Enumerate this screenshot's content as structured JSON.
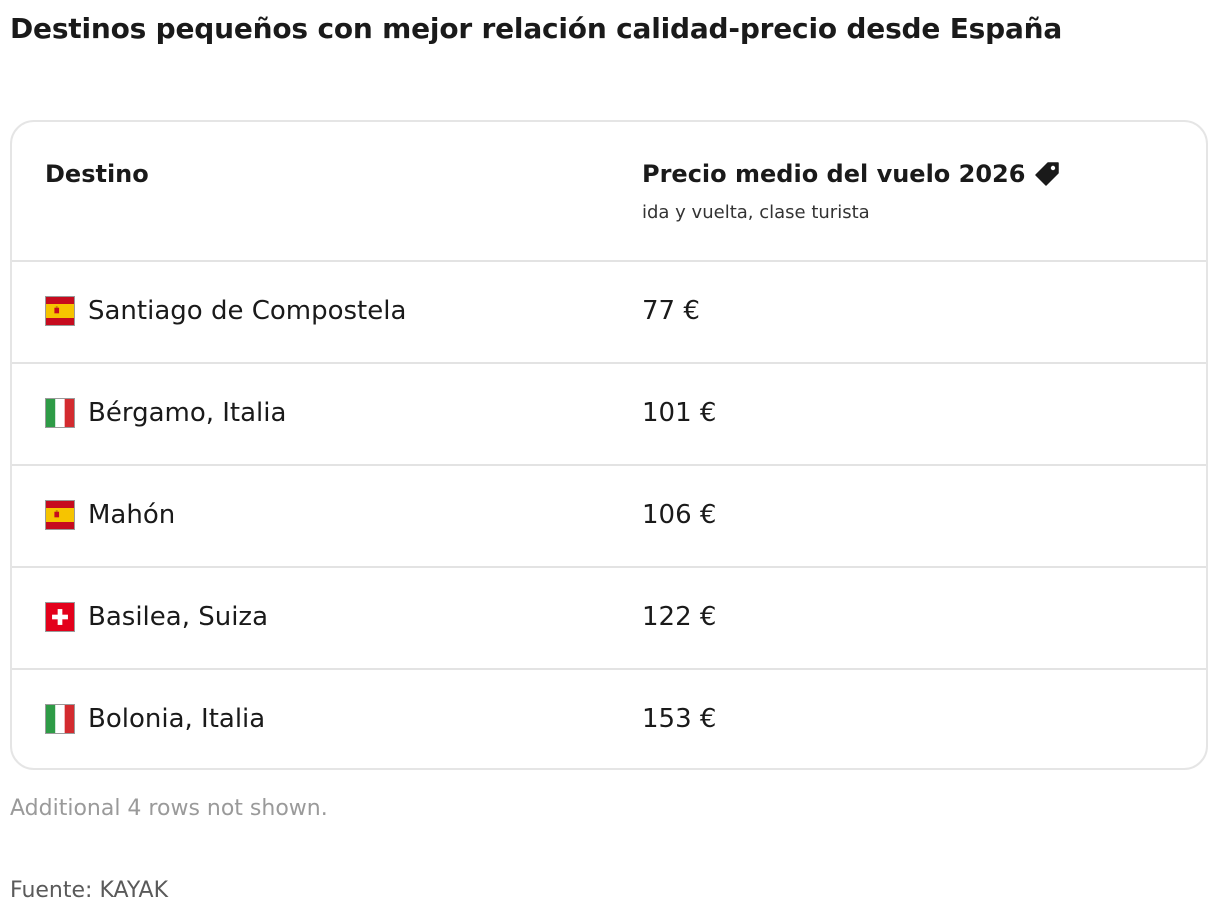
{
  "title": "Destinos pequeños con mejor relación calidad-precio desde España",
  "table": {
    "columns": [
      {
        "label": "Destino"
      },
      {
        "label": "Precio medio del vuelo 2026",
        "sublabel": "ida y vuelta, clase turista",
        "icon": "price-tag-icon"
      }
    ]
  },
  "chart_data": {
    "type": "table",
    "title": "Destinos pequeños con mejor relación calidad-precio desde España",
    "columns": [
      "Destino",
      "Precio medio del vuelo 2026"
    ],
    "rows": [
      {
        "destino": "Santiago de Compostela",
        "flag": "spain-flag-icon",
        "precio": "77 €",
        "value": 77
      },
      {
        "destino": "Bérgamo, Italia",
        "flag": "italy-flag-icon",
        "precio": "101 €",
        "value": 101
      },
      {
        "destino": "Mahón",
        "flag": "spain-flag-icon",
        "precio": "106 €",
        "value": 106
      },
      {
        "destino": "Basilea, Suiza",
        "flag": "switzerland-flag-icon",
        "precio": "122 €",
        "value": 122
      },
      {
        "destino": "Bolonia, Italia",
        "flag": "italy-flag-icon",
        "precio": "153 €",
        "value": 153
      }
    ]
  },
  "footnote": "Additional 4 rows not shown.",
  "source": "Fuente: KAYAK",
  "colors": {
    "text": "#1a1a1a",
    "border": "#e3e3e3",
    "muted": "#9a9a9a",
    "spain_red": "#c60b1e",
    "spain_yellow": "#f6c400",
    "italy_green": "#2e9b46",
    "italy_red": "#d32b2f",
    "swiss_red": "#e3001b"
  }
}
